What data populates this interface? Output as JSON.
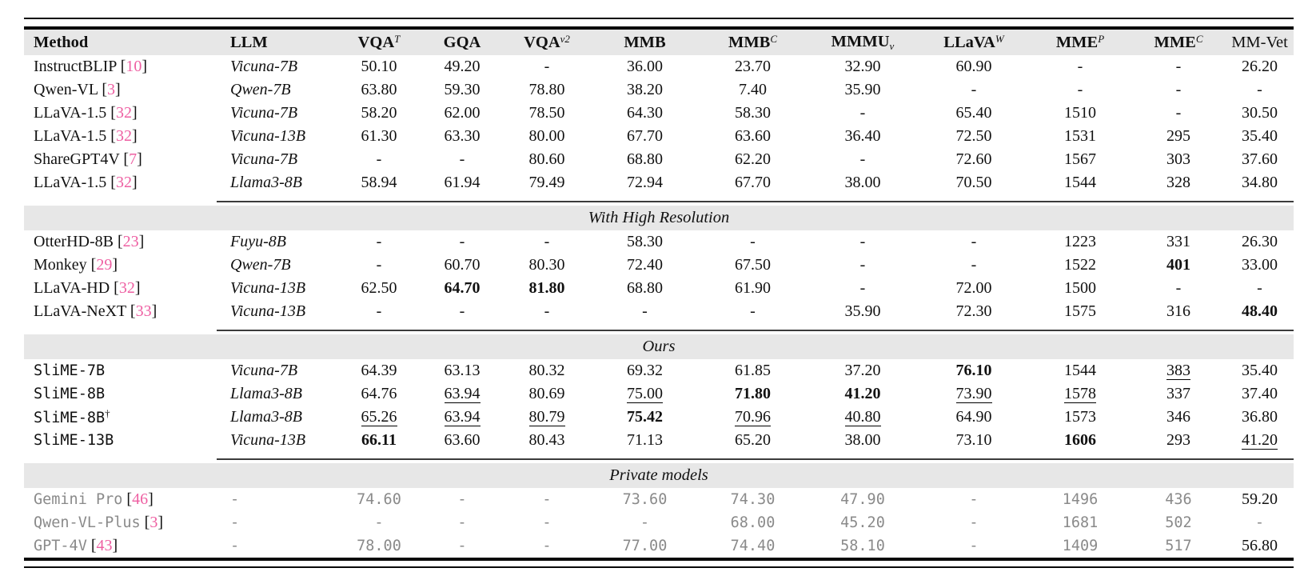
{
  "colors": {
    "citation_pink": "#ee5fa2",
    "band_gray": "#e7e7e7",
    "muted_gray": "#8a8a8a",
    "rule_black": "#0a0a0a"
  },
  "table": {
    "columns": [
      {
        "label": "Method",
        "align": "left"
      },
      {
        "label": "LLM",
        "align": "left"
      },
      {
        "label": "VQA",
        "sup": "T"
      },
      {
        "label": "GQA"
      },
      {
        "label": "VQA",
        "sup": "v2"
      },
      {
        "label": "MMB"
      },
      {
        "label": "MMB",
        "sup": "C"
      },
      {
        "label": "MMMU",
        "sub": "v"
      },
      {
        "label": "LLaVA",
        "sup": "W"
      },
      {
        "label": "MME",
        "sup": "P"
      },
      {
        "label": "MME",
        "sup": "C"
      },
      {
        "label": "MM-Vet",
        "bold": false
      }
    ],
    "sections": [
      {
        "title": null,
        "rows": [
          {
            "method": "InstructBLIP",
            "cite": "10",
            "llm": "Vicuna-7B",
            "values": [
              "50.10",
              "49.20",
              "-",
              "36.00",
              "23.70",
              "32.90",
              "60.90",
              "-",
              "-",
              "26.20"
            ]
          },
          {
            "method": "Qwen-VL",
            "cite": "3",
            "llm": "Qwen-7B",
            "values": [
              "63.80",
              "59.30",
              "78.80",
              "38.20",
              "7.40",
              "35.90",
              "-",
              "-",
              "-",
              "-"
            ]
          },
          {
            "method": "LLaVA-1.5",
            "cite": "32",
            "llm": "Vicuna-7B",
            "values": [
              "58.20",
              "62.00",
              "78.50",
              "64.30",
              "58.30",
              "-",
              "65.40",
              "1510",
              "-",
              "30.50"
            ]
          },
          {
            "method": "LLaVA-1.5",
            "cite": "32",
            "llm": "Vicuna-13B",
            "values": [
              "61.30",
              "63.30",
              "80.00",
              "67.70",
              "63.60",
              "36.40",
              "72.50",
              "1531",
              "295",
              "35.40"
            ]
          },
          {
            "method": "ShareGPT4V",
            "cite": "7",
            "llm": "Vicuna-7B",
            "values": [
              "-",
              "-",
              "80.60",
              "68.80",
              "62.20",
              "-",
              "72.60",
              "1567",
              "303",
              "37.60"
            ]
          },
          {
            "method": "LLaVA-1.5",
            "cite": "32",
            "llm": "Llama3-8B",
            "values": [
              "58.94",
              "61.94",
              "79.49",
              "72.94",
              "67.70",
              "38.00",
              "70.50",
              "1544",
              "328",
              "34.80"
            ]
          }
        ]
      },
      {
        "title": "With High Resolution",
        "rows": [
          {
            "method": "OtterHD-8B",
            "cite": "23",
            "llm": "Fuyu-8B",
            "values": [
              "-",
              "-",
              "-",
              "58.30",
              "-",
              "-",
              "-",
              "1223",
              "331",
              "26.30"
            ]
          },
          {
            "method": "Monkey",
            "cite": "29",
            "llm": "Qwen-7B",
            "values": [
              "-",
              "60.70",
              "80.30",
              "72.40",
              "67.50",
              "-",
              "-",
              "1522",
              {
                "v": "401",
                "s": "b"
              },
              "33.00"
            ]
          },
          {
            "method": "LLaVA-HD",
            "cite": "32",
            "llm": "Vicuna-13B",
            "values": [
              "62.50",
              {
                "v": "64.70",
                "s": "b"
              },
              {
                "v": "81.80",
                "s": "b"
              },
              "68.80",
              "61.90",
              "-",
              "72.00",
              "1500",
              "-",
              "-"
            ]
          },
          {
            "method": "LLaVA-NeXT",
            "cite": "33",
            "llm": "Vicuna-13B",
            "values": [
              "-",
              "-",
              "-",
              "-",
              "-",
              "35.90",
              "72.30",
              "1575",
              "316",
              {
                "v": "48.40",
                "s": "b"
              }
            ]
          }
        ]
      },
      {
        "title": "Ours",
        "rows": [
          {
            "method": "SliME-7B",
            "mono": true,
            "llm": "Vicuna-7B",
            "values": [
              "64.39",
              "63.13",
              "80.32",
              "69.32",
              "61.85",
              "37.20",
              {
                "v": "76.10",
                "s": "b"
              },
              "1544",
              {
                "v": "383",
                "s": "u"
              },
              "35.40"
            ]
          },
          {
            "method": "SliME-8B",
            "mono": true,
            "llm": "Llama3-8B",
            "values": [
              "64.76",
              {
                "v": "63.94",
                "s": "u"
              },
              "80.69",
              {
                "v": "75.00",
                "s": "u"
              },
              {
                "v": "71.80",
                "s": "b"
              },
              {
                "v": "41.20",
                "s": "b"
              },
              {
                "v": "73.90",
                "s": "u"
              },
              {
                "v": "1578",
                "s": "u"
              },
              "337",
              "37.40"
            ]
          },
          {
            "method": "SliME-8B",
            "mono": true,
            "dagger": true,
            "llm": "Llama3-8B",
            "values": [
              {
                "v": "65.26",
                "s": "u"
              },
              {
                "v": "63.94",
                "s": "u"
              },
              {
                "v": "80.79",
                "s": "u"
              },
              {
                "v": "75.42",
                "s": "b"
              },
              {
                "v": "70.96",
                "s": "u"
              },
              {
                "v": "40.80",
                "s": "u"
              },
              "64.90",
              "1573",
              "346",
              "36.80"
            ]
          },
          {
            "method": "SliME-13B",
            "mono": true,
            "llm": "Vicuna-13B",
            "values": [
              {
                "v": "66.11",
                "s": "b"
              },
              "63.60",
              "80.43",
              "71.13",
              "65.20",
              "38.00",
              "73.10",
              {
                "v": "1606",
                "s": "b"
              },
              "293",
              {
                "v": "41.20",
                "s": "u"
              }
            ]
          }
        ]
      },
      {
        "title": "Private models",
        "private": true,
        "rows": [
          {
            "method": "Gemini Pro",
            "cite": "46",
            "mono": true,
            "gray": true,
            "llm": "-",
            "values": [
              "74.60",
              "-",
              "-",
              "73.60",
              "74.30",
              "47.90",
              "-",
              "1496",
              "436",
              {
                "v": "59.20",
                "s": "k"
              }
            ]
          },
          {
            "method": "Qwen-VL-Plus",
            "cite": "3",
            "mono": true,
            "gray": true,
            "llm": "-",
            "values": [
              "-",
              "-",
              "-",
              "-",
              "68.00",
              "45.20",
              "-",
              "1681",
              "502",
              "-"
            ]
          },
          {
            "method": "GPT-4V",
            "cite": "43",
            "mono": true,
            "gray": true,
            "llm": "-",
            "values": [
              "78.00",
              "-",
              "-",
              "77.00",
              "74.40",
              "58.10",
              "-",
              "1409",
              "517",
              {
                "v": "56.80",
                "s": "k"
              }
            ]
          }
        ]
      }
    ]
  }
}
